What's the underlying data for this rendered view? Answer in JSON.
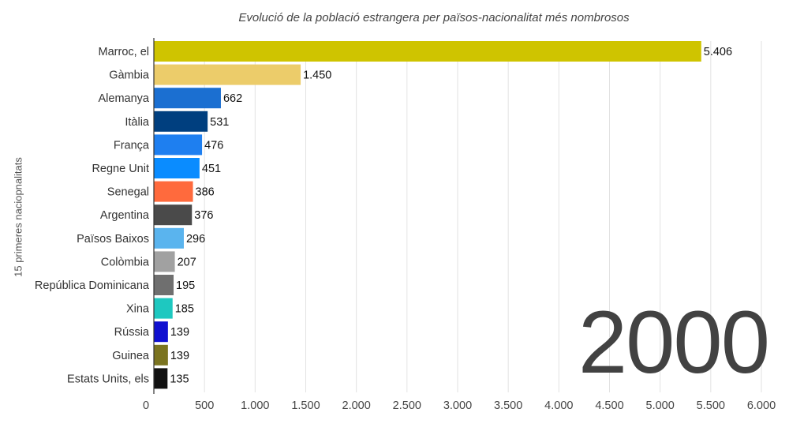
{
  "chart_data": {
    "type": "bar",
    "orientation": "horizontal",
    "title": "Evolució de la població estrangera per països-nacionalitat més nombrosos",
    "ylabel": "15 primeres naciopnalitats",
    "xlabel": "",
    "year": "2000",
    "xlim": [
      0,
      6000
    ],
    "xticks": [
      "0",
      "500",
      "1.000",
      "1.500",
      "2.000",
      "2.500",
      "3.000",
      "3.500",
      "4.000",
      "4.500",
      "5.000",
      "5.500",
      "6.000"
    ],
    "grid": true,
    "categories": [
      "Marroc, el",
      "Gàmbia",
      "Alemanya",
      "Itàlia",
      "França",
      "Regne Unit",
      "Senegal",
      "Argentina",
      "Països Baixos",
      "Colòmbia",
      "República Dominicana",
      "Xina",
      "Rússia",
      "Guinea",
      "Estats Units, els"
    ],
    "values": [
      5406,
      1450,
      662,
      531,
      476,
      451,
      386,
      376,
      296,
      207,
      195,
      185,
      139,
      139,
      135
    ],
    "value_labels": [
      "5.406",
      "1.450",
      "662",
      "531",
      "476",
      "451",
      "386",
      "376",
      "296",
      "207",
      "195",
      "185",
      "139",
      "139",
      "135"
    ],
    "colors": [
      "#cfc400",
      "#eccc6a",
      "#1b6fd1",
      "#003f7f",
      "#1e7ff0",
      "#0a8cff",
      "#ff6a3d",
      "#4a4a4a",
      "#5ab4ee",
      "#a1a1a1",
      "#6f6f6f",
      "#1ec8c0",
      "#1010d0",
      "#7b7420",
      "#111111"
    ]
  }
}
